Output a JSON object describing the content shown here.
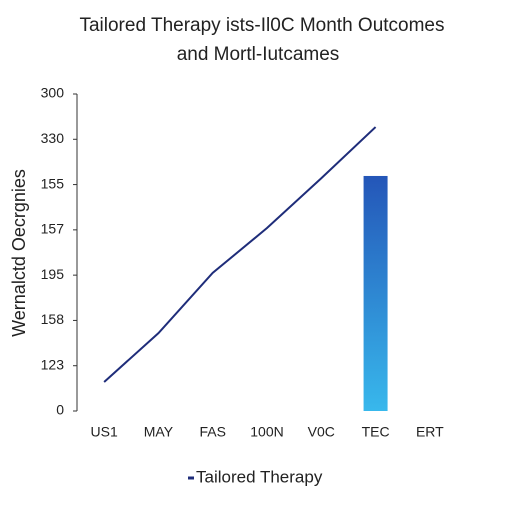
{
  "chart_data": {
    "type": "line",
    "title": [
      "Tailored Therapy ists-Il0C Month Outcomes",
      "and Mortl-Iutcames"
    ],
    "y_label": "Wernalctd Oecrgnies",
    "categories": [
      "US1",
      "MAY",
      "FAS",
      "100N",
      "V0C",
      "TEC",
      "ERT"
    ],
    "series": [
      {
        "name": "Tailored Therapy",
        "color": "#1f2d7a",
        "values": [
          0.64,
          1.72,
          3.05,
          4.04,
          5.14,
          6.27,
          null
        ]
      },
      {
        "type": "bar",
        "color": [
          "#2456b8",
          "#38b8ec"
        ],
        "values": [
          null,
          null,
          null,
          null,
          null,
          5.19,
          null
        ]
      }
    ],
    "ylim": [
      0,
      7
    ],
    "yticks": [
      0,
      {
        "value": 1,
        "label": "123"
      },
      {
        "value": 2,
        "label": "158"
      },
      {
        "value": 3,
        "label": "195"
      },
      {
        "value": 4,
        "label": "157"
      },
      {
        "value": 5,
        "label": "155"
      },
      {
        "value": 6,
        "label": "330"
      },
      {
        "value": 7,
        "label": "300"
      }
    ],
    "grid": false,
    "legend": "bottom"
  }
}
